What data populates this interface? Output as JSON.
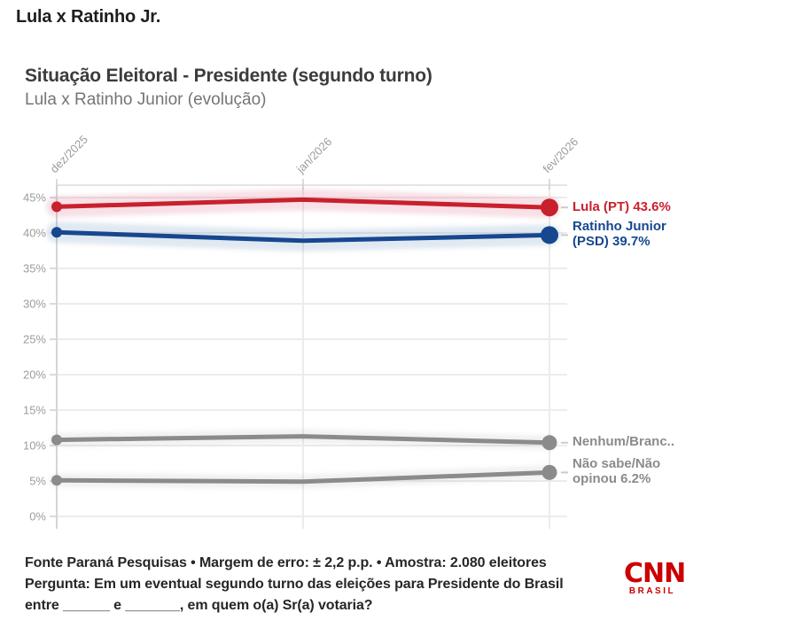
{
  "header": {
    "title": "Lula x Ratinho Jr."
  },
  "chart": {
    "title": "Situação Eleitoral - Presidente (segundo turno)",
    "subtitle": "Lula x Ratinho Junior (evolução)"
  },
  "chart_data": {
    "type": "line",
    "x": [
      "dez/2025",
      "jan/2026",
      "fev/2026"
    ],
    "yticks": [
      "0%",
      "5%",
      "10%",
      "15%",
      "20%",
      "25%",
      "30%",
      "35%",
      "40%",
      "45%"
    ],
    "ytick_values": [
      0,
      5,
      10,
      15,
      20,
      25,
      30,
      35,
      40,
      45
    ],
    "ylim": [
      0,
      46.8
    ],
    "grid": true,
    "legend_position": "end-of-line-labels",
    "series": [
      {
        "name": "Lula (PT)",
        "color": "#c9202e",
        "values": [
          43.7,
          44.7,
          43.6
        ],
        "end_label_lines": [
          "Lula (PT) 43.6%",
          ""
        ]
      },
      {
        "name": "Ratinho Junior (PSD)",
        "color": "#17478f",
        "values": [
          40.1,
          38.9,
          39.7
        ],
        "end_label_lines": [
          "Ratinho Junior",
          "(PSD) 39.7%"
        ]
      },
      {
        "name": "Nenhum/Branco",
        "color": "#8b8b8b",
        "values": [
          10.8,
          11.3,
          10.4
        ],
        "end_label_lines": [
          "Nenhum/Branc..",
          ""
        ]
      },
      {
        "name": "Não sabe/Não opinou",
        "color": "#8b8b8b",
        "values": [
          5.1,
          4.9,
          6.2
        ],
        "end_label_lines": [
          "Não sabe/Não",
          "opinou 6.2%"
        ]
      }
    ]
  },
  "footer": {
    "line1": "Fonte Paraná Pesquisas • Margem de erro: ± 2,2 p.p. • Amostra: 2.080 eleitores",
    "line2": "Pergunta: Em um eventual segundo turno das eleições para Presidente do Brasil",
    "line3": "entre ______ e _______, em quem o(a) Sr(a) votaria?"
  },
  "logo": {
    "cnn": "CNN",
    "brasil": "BRASIL",
    "color": "#cc0000"
  }
}
